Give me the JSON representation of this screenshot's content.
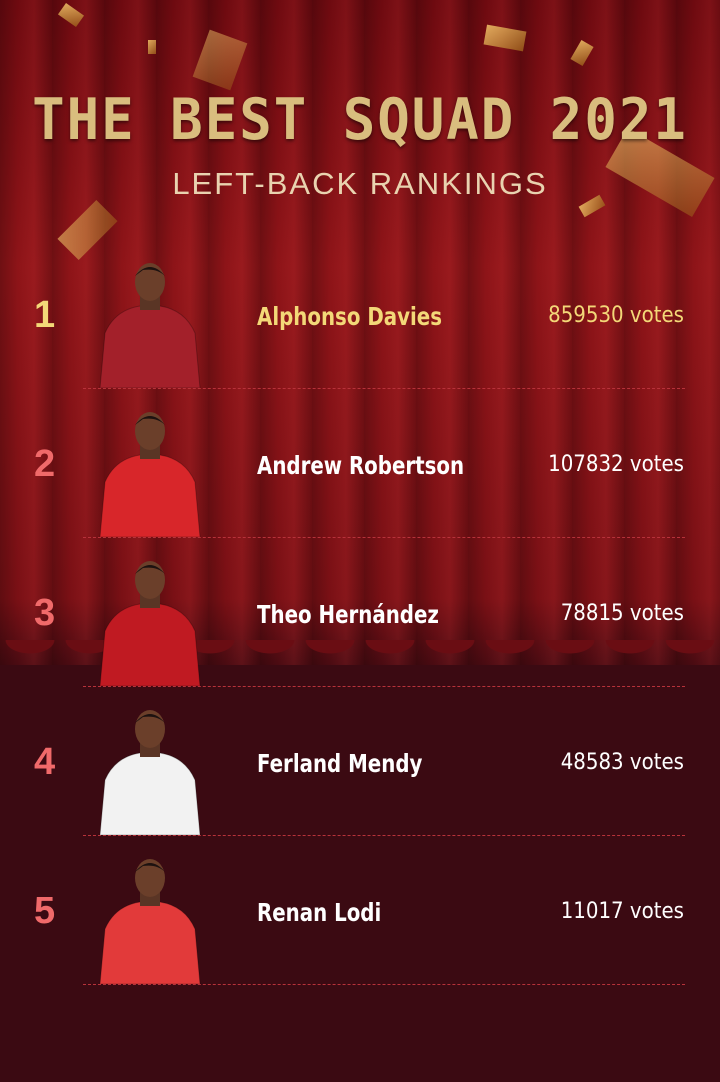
{
  "header": {
    "title": "THE BEST SQUAD 2021",
    "subtitle": "LEFT-BACK RANKINGS"
  },
  "colors": {
    "gold": "#f3d878",
    "rank": "#f06a6a",
    "curtain": "#8e1418",
    "background": "#3b0a12"
  },
  "rankings": [
    {
      "rank": "1",
      "name": "Alphonso Davies",
      "votes": "859530 votes",
      "jersey": "#a3202a"
    },
    {
      "rank": "2",
      "name": "Andrew Robertson",
      "votes": "107832 votes",
      "jersey": "#d8262a"
    },
    {
      "rank": "3",
      "name": "Theo Hernández",
      "votes": "78815 votes",
      "jersey": "#c01a22"
    },
    {
      "rank": "4",
      "name": "Ferland Mendy",
      "votes": "48583 votes",
      "jersey": "#f2f2f2"
    },
    {
      "rank": "5",
      "name": "Renan Lodi",
      "votes": "11017 votes",
      "jersey": "#e23a3a"
    }
  ]
}
